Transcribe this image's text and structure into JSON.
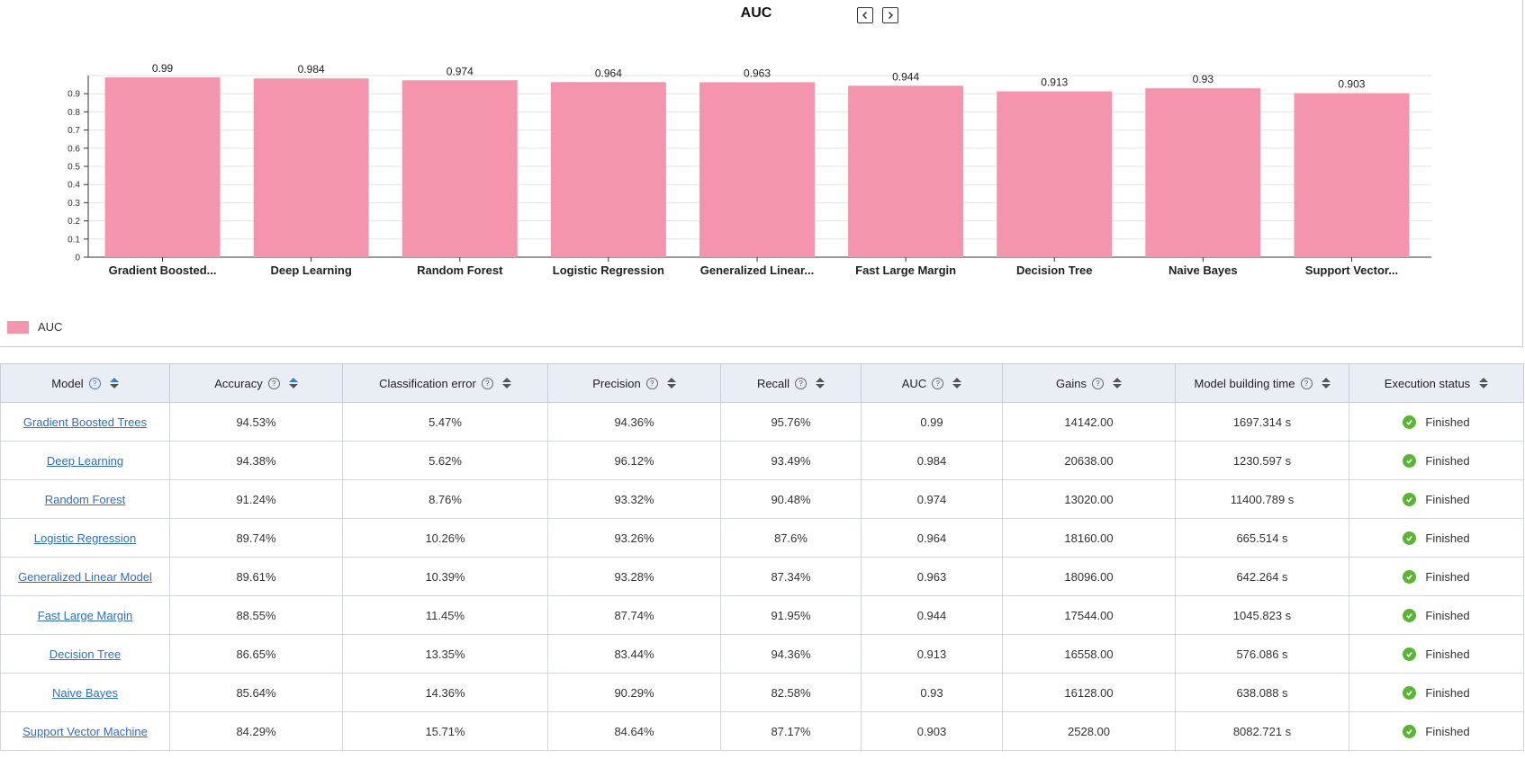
{
  "chart_data": {
    "type": "bar",
    "title": "AUC",
    "categories": [
      "Gradient Boosted...",
      "Deep Learning",
      "Random Forest",
      "Logistic Regression",
      "Generalized Linear...",
      "Fast Large Margin",
      "Decision Tree",
      "Naive Bayes",
      "Support Vector..."
    ],
    "values": [
      0.99,
      0.984,
      0.974,
      0.964,
      0.963,
      0.944,
      0.913,
      0.93,
      0.903
    ],
    "value_labels": [
      "0.99",
      "0.984",
      "0.974",
      "0.964",
      "0.963",
      "0.944",
      "0.913",
      "0.93",
      "0.903"
    ],
    "yticks": [
      "0",
      "0.1",
      "0.2",
      "0.3",
      "0.4",
      "0.5",
      "0.6",
      "0.7",
      "0.8",
      "0.9"
    ],
    "ylim": [
      0,
      1
    ],
    "series_name": "AUC",
    "bar_color": "#f595ad",
    "grid": true,
    "legend_position": "bottom-left"
  },
  "nav": {
    "prev_icon": "chevron-left-icon",
    "next_icon": "chevron-right-icon"
  },
  "table": {
    "columns": [
      {
        "label": "Model",
        "help": true,
        "sort_active": true
      },
      {
        "label": "Accuracy",
        "help": true,
        "sort_active": true
      },
      {
        "label": "Classification error",
        "help": true,
        "sort_active": false
      },
      {
        "label": "Precision",
        "help": true,
        "sort_active": false
      },
      {
        "label": "Recall",
        "help": true,
        "sort_active": false
      },
      {
        "label": "AUC",
        "help": true,
        "sort_active": false
      },
      {
        "label": "Gains",
        "help": true,
        "sort_active": false
      },
      {
        "label": "Model building time",
        "help": true,
        "sort_active": false
      },
      {
        "label": "Execution status",
        "help": false,
        "sort_active": false
      }
    ],
    "rows": [
      {
        "model": "Gradient Boosted Trees",
        "accuracy": "94.53%",
        "error": "5.47%",
        "precision": "94.36%",
        "recall": "95.76%",
        "auc": "0.99",
        "gains": "14142.00",
        "time": "1697.314 s",
        "status": "Finished"
      },
      {
        "model": "Deep Learning",
        "accuracy": "94.38%",
        "error": "5.62%",
        "precision": "96.12%",
        "recall": "93.49%",
        "auc": "0.984",
        "gains": "20638.00",
        "time": "1230.597 s",
        "status": "Finished"
      },
      {
        "model": "Random Forest",
        "accuracy": "91.24%",
        "error": "8.76%",
        "precision": "93.32%",
        "recall": "90.48%",
        "auc": "0.974",
        "gains": "13020.00",
        "time": "11400.789 s",
        "status": "Finished"
      },
      {
        "model": "Logistic Regression",
        "accuracy": "89.74%",
        "error": "10.26%",
        "precision": "93.26%",
        "recall": "87.6%",
        "auc": "0.964",
        "gains": "18160.00",
        "time": "665.514 s",
        "status": "Finished"
      },
      {
        "model": "Generalized Linear Model",
        "accuracy": "89.61%",
        "error": "10.39%",
        "precision": "93.28%",
        "recall": "87.34%",
        "auc": "0.963",
        "gains": "18096.00",
        "time": "642.264 s",
        "status": "Finished"
      },
      {
        "model": "Fast Large Margin",
        "accuracy": "88.55%",
        "error": "11.45%",
        "precision": "87.74%",
        "recall": "91.95%",
        "auc": "0.944",
        "gains": "17544.00",
        "time": "1045.823 s",
        "status": "Finished"
      },
      {
        "model": "Decision Tree",
        "accuracy": "86.65%",
        "error": "13.35%",
        "precision": "83.44%",
        "recall": "94.36%",
        "auc": "0.913",
        "gains": "16558.00",
        "time": "576.086 s",
        "status": "Finished"
      },
      {
        "model": "Naive Bayes",
        "accuracy": "85.64%",
        "error": "14.36%",
        "precision": "90.29%",
        "recall": "82.58%",
        "auc": "0.93",
        "gains": "16128.00",
        "time": "638.088 s",
        "status": "Finished"
      },
      {
        "model": "Support Vector Machine",
        "accuracy": "84.29%",
        "error": "15.71%",
        "precision": "84.64%",
        "recall": "87.17%",
        "auc": "0.903",
        "gains": "2528.00",
        "time": "8082.721 s",
        "status": "Finished"
      }
    ]
  }
}
